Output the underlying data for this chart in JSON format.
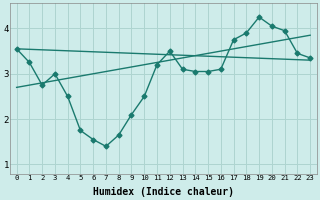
{
  "x_ticks": [
    0,
    1,
    2,
    3,
    4,
    5,
    6,
    7,
    8,
    9,
    10,
    11,
    12,
    13,
    14,
    15,
    16,
    17,
    18,
    19,
    20,
    21,
    22,
    23
  ],
  "line1_x": [
    0,
    1,
    2,
    3,
    4,
    5,
    6,
    7,
    8,
    9,
    10,
    11,
    12,
    13,
    14,
    15,
    16,
    17,
    18,
    19,
    20,
    21,
    22,
    23
  ],
  "line1_y": [
    3.55,
    3.25,
    2.75,
    3.0,
    2.5,
    1.75,
    1.55,
    1.4,
    1.65,
    2.1,
    2.5,
    3.2,
    3.5,
    3.1,
    3.05,
    3.05,
    3.1,
    3.75,
    3.9,
    4.25,
    4.05,
    3.95,
    3.45,
    3.35
  ],
  "trend1_x": [
    0,
    23
  ],
  "trend1_y": [
    3.55,
    3.3
  ],
  "trend2_x": [
    0,
    23
  ],
  "trend2_y": [
    2.7,
    3.85
  ],
  "color": "#1a7a6e",
  "bg_color": "#ceecea",
  "grid_color": "#aed4d0",
  "xlabel": "Humidex (Indice chaleur)",
  "ylim": [
    0.8,
    4.55
  ],
  "xlim": [
    -0.5,
    23.5
  ],
  "yticks": [
    1,
    2,
    3,
    4
  ],
  "xlabel_fontsize": 7
}
